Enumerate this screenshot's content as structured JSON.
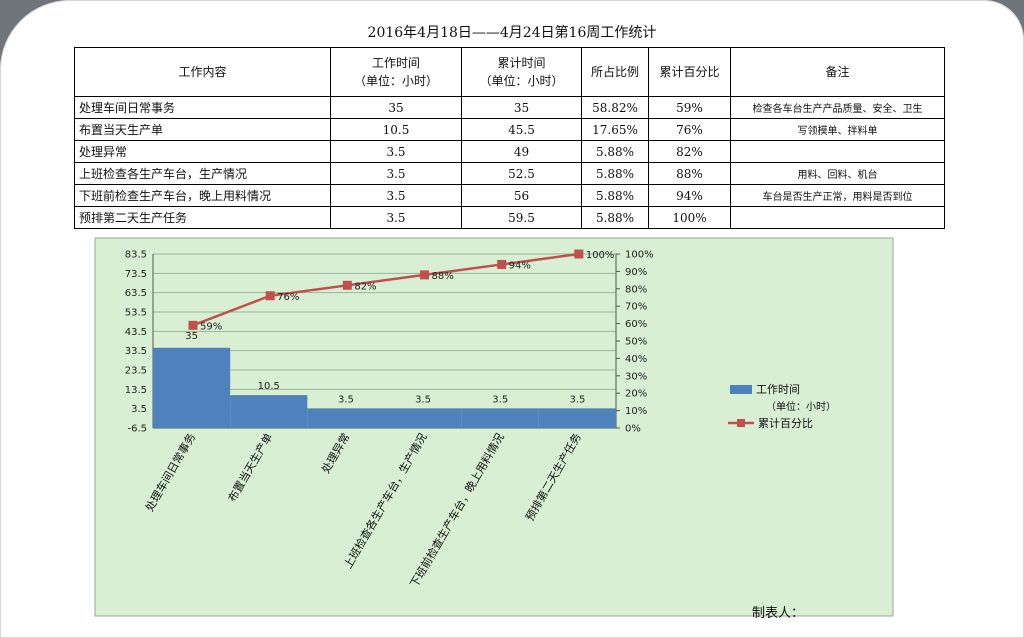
{
  "title": "2016年4月18日——4月24日第16周工作统计",
  "table": {
    "headers": [
      {
        "line1": "工作内容",
        "line2": ""
      },
      {
        "line1": "工作时间",
        "line2": "（单位：小时）"
      },
      {
        "line1": "累计时间",
        "line2": "（单位：小时）"
      },
      {
        "line1": "所占比例",
        "line2": ""
      },
      {
        "line1": "累计百分比",
        "line2": ""
      },
      {
        "line1": "备注",
        "line2": ""
      }
    ],
    "rows": [
      {
        "task": "处理车间日常事务",
        "hours": "35",
        "cumulative": "35",
        "ratio": "58.82%",
        "cum_pct": "59%",
        "note": "检查各车台生产产品质量、安全、卫生"
      },
      {
        "task": "布置当天生产单",
        "hours": "10.5",
        "cumulative": "45.5",
        "ratio": "17.65%",
        "cum_pct": "76%",
        "note": "写领模单、拌料单"
      },
      {
        "task": "处理异常",
        "hours": "3.5",
        "cumulative": "49",
        "ratio": "5.88%",
        "cum_pct": "82%",
        "note": ""
      },
      {
        "task": "上班检查各生产车台，生产情况",
        "hours": "3.5",
        "cumulative": "52.5",
        "ratio": "5.88%",
        "cum_pct": "88%",
        "note": "用料、回料、机台"
      },
      {
        "task": "下班前检查生产车台，晚上用料情况",
        "hours": "3.5",
        "cumulative": "56",
        "ratio": "5.88%",
        "cum_pct": "94%",
        "note": "车台是否生产正常，用料是否到位"
      },
      {
        "task": "预排第二天生产任务",
        "hours": "3.5",
        "cumulative": "59.5",
        "ratio": "5.88%",
        "cum_pct": "100%",
        "note": ""
      }
    ]
  },
  "chart_data": {
    "type": "bar",
    "categories": [
      "处理车间日常事务",
      "布置当天生产单",
      "处理异常",
      "上班检查各生产车台，生产情况",
      "下班前检查生产车台，晚上用料情况",
      "预排第二天生产任务"
    ],
    "series": [
      {
        "name": "工作时间（单位：小时）",
        "type": "bar",
        "axis": "left",
        "values": [
          35,
          10.5,
          3.5,
          3.5,
          3.5,
          3.5
        ],
        "color": "#4f81bd",
        "labels": [
          "35",
          "10.5",
          "3.5",
          "3.5",
          "3.5",
          "3.5"
        ]
      },
      {
        "name": "累计百分比",
        "type": "line",
        "axis": "right",
        "values": [
          59,
          76,
          82,
          88,
          94,
          100
        ],
        "color": "#c0504d",
        "labels": [
          "59%",
          "76%",
          "82%",
          "88%",
          "94%",
          "100%"
        ]
      }
    ],
    "left_axis": {
      "min": -6.5,
      "max": 83.5,
      "ticks": [
        "83.5",
        "73.5",
        "63.5",
        "53.5",
        "43.5",
        "33.5",
        "23.5",
        "13.5",
        "3.5",
        "-6.5"
      ]
    },
    "right_axis": {
      "min": 0,
      "max": 100,
      "ticks": [
        "100%",
        "90%",
        "80%",
        "70%",
        "60%",
        "50%",
        "40%",
        "30%",
        "20%",
        "10%",
        "0%"
      ]
    },
    "legend": {
      "position": "right",
      "entries": [
        {
          "line1": "工作时间",
          "line2": "（单位：小时）"
        },
        {
          "line1": "累计百分比",
          "line2": ""
        }
      ]
    },
    "grid": true,
    "background": "#d8efd4"
  },
  "footer": {
    "maker_label": "制表人："
  }
}
